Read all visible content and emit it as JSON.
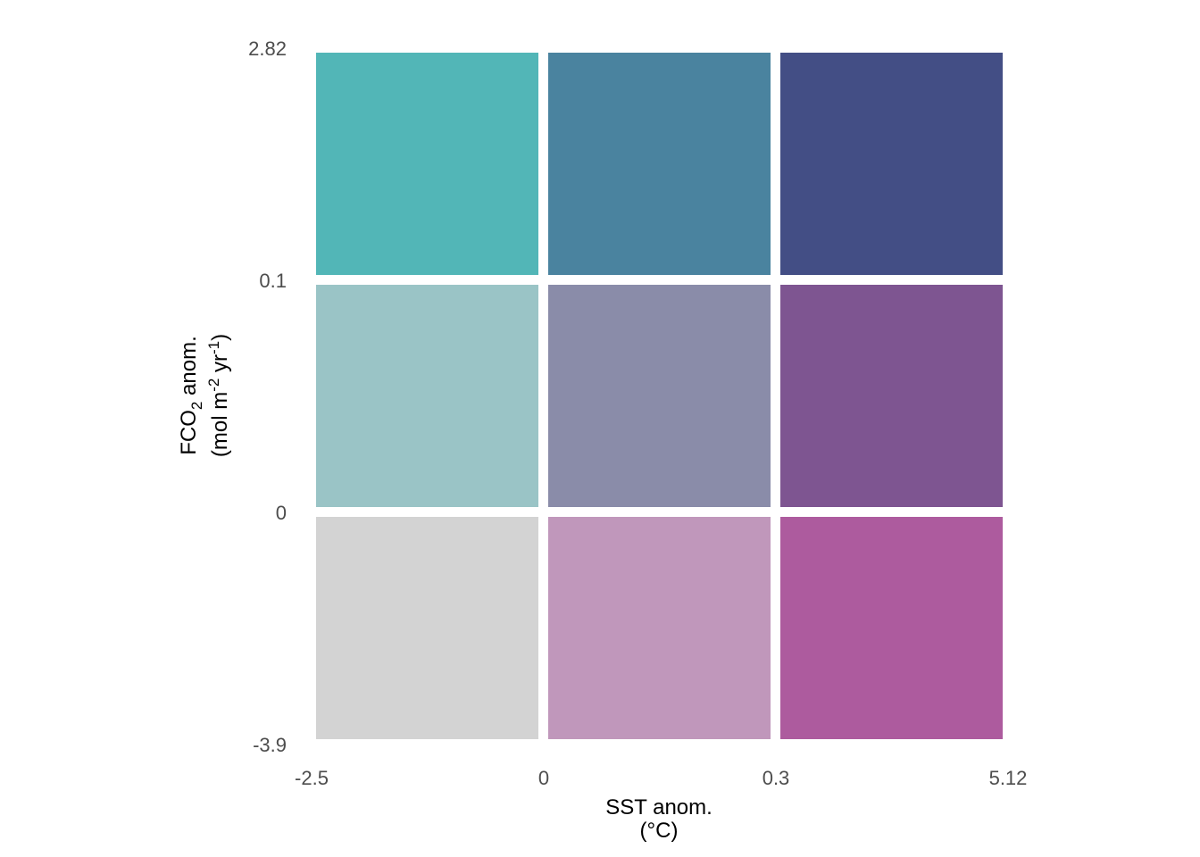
{
  "chart_data": {
    "type": "heatmap",
    "title": "",
    "x_breaks": [
      "-2.5",
      "0",
      "0.3",
      "5.12"
    ],
    "y_breaks": [
      "-3.9",
      "0",
      "0.1",
      "2.82"
    ],
    "xlabel": {
      "line1": "SST anom.",
      "line2": "(°C)"
    },
    "ylabel": {
      "line1_base": "FCO",
      "line1_sub": "2",
      "line1_rest": " anom.",
      "line2_open": "(mol m",
      "line2_sup1": "-2",
      "line2_mid": " yr",
      "line2_sup2": "-1",
      "line2_close": ")"
    },
    "cells": [
      {
        "col": 0,
        "row": 0,
        "color": "#d3d3d3"
      },
      {
        "col": 1,
        "row": 0,
        "color": "#c097bb"
      },
      {
        "col": 2,
        "row": 0,
        "color": "#ad5b9e"
      },
      {
        "col": 0,
        "row": 1,
        "color": "#9ac4c6"
      },
      {
        "col": 1,
        "row": 1,
        "color": "#8a8ca9"
      },
      {
        "col": 2,
        "row": 1,
        "color": "#7e5591"
      },
      {
        "col": 0,
        "row": 2,
        "color": "#52b6b7"
      },
      {
        "col": 1,
        "row": 2,
        "color": "#4a839f"
      },
      {
        "col": 2,
        "row": 2,
        "color": "#434e85"
      }
    ],
    "grid": false,
    "legend": "none"
  }
}
